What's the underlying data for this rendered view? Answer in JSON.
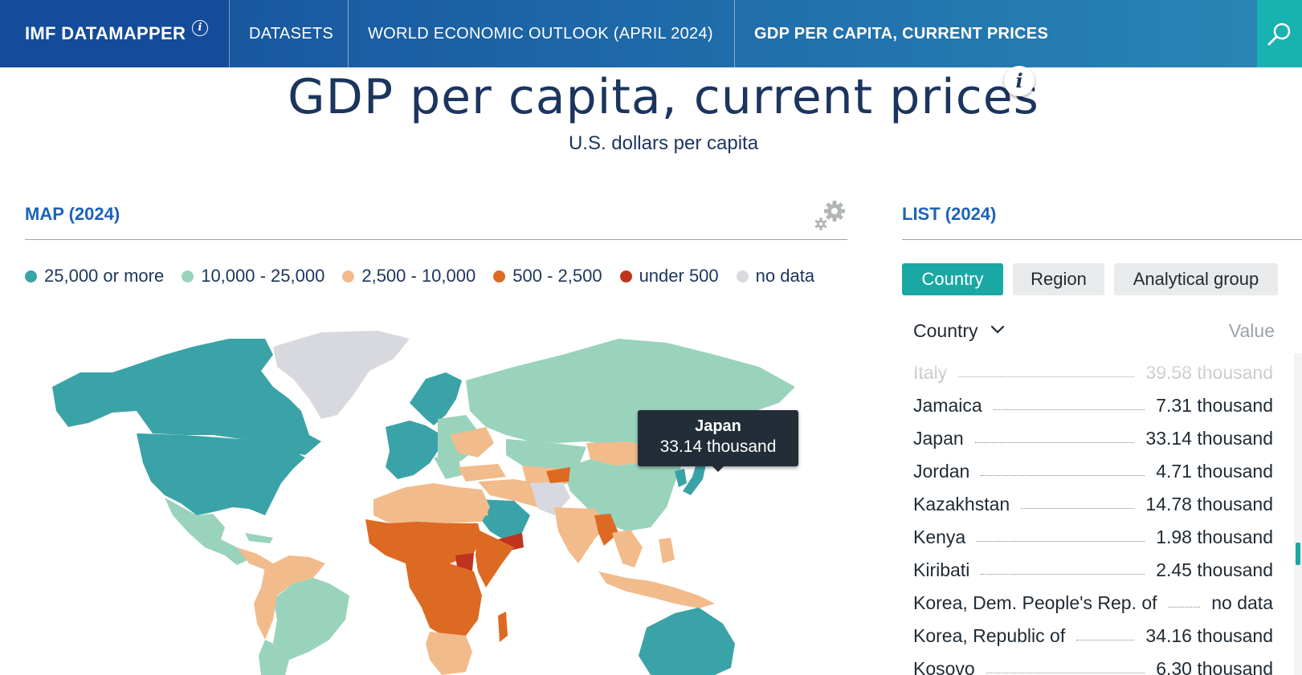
{
  "nav": {
    "brand": "IMF DATAMAPPER",
    "brand_info_icon": "info-circle-icon",
    "datasets": "DATASETS",
    "dataset_name": "WORLD ECONOMIC OUTLOOK (APRIL 2024)",
    "indicator": "GDP PER CAPITA, CURRENT PRICES",
    "search_icon": "search-icon"
  },
  "header": {
    "title": "GDP per capita, current prices",
    "info_icon": "info-icon",
    "subtitle": "U.S. dollars per capita"
  },
  "map": {
    "heading": "MAP (2024)",
    "settings_icon": "gear-icon",
    "legend": [
      {
        "label": "25,000 or more",
        "color": "#3aa3a8"
      },
      {
        "label": "10,000 - 25,000",
        "color": "#9ad3bc"
      },
      {
        "label": "2,500 - 10,000",
        "color": "#f2bb8c"
      },
      {
        "label": "500 - 2,500",
        "color": "#dd6a22"
      },
      {
        "label": "under 500",
        "color": "#c0331f"
      },
      {
        "label": "no data",
        "color": "#d7d9de"
      }
    ],
    "tooltip": {
      "country": "Japan",
      "value": "33.14 thousand"
    }
  },
  "list": {
    "heading": "LIST (2024)",
    "tabs": [
      "Country",
      "Region",
      "Analytical group"
    ],
    "active_tab": "Country",
    "col_country": "Country",
    "col_value": "Value",
    "rows": [
      {
        "name": "Italy",
        "value": "39.58 thousand"
      },
      {
        "name": "Jamaica",
        "value": "7.31 thousand"
      },
      {
        "name": "Japan",
        "value": "33.14 thousand"
      },
      {
        "name": "Jordan",
        "value": "4.71 thousand"
      },
      {
        "name": "Kazakhstan",
        "value": "14.78 thousand"
      },
      {
        "name": "Kenya",
        "value": "1.98 thousand"
      },
      {
        "name": "Kiribati",
        "value": "2.45 thousand"
      },
      {
        "name": "Korea, Dem. People's Rep. of",
        "value": "no data"
      },
      {
        "name": "Korea, Republic of",
        "value": "34.16 thousand"
      },
      {
        "name": "Kosovo",
        "value": "6.30 thousand"
      }
    ]
  }
}
